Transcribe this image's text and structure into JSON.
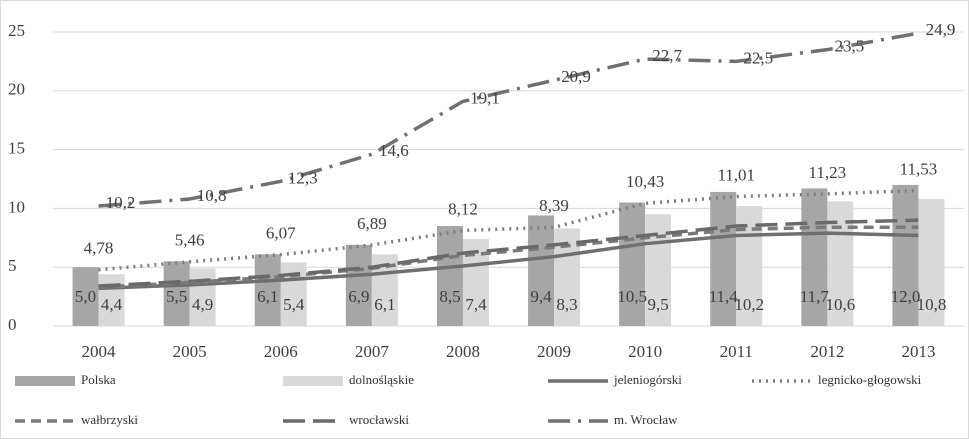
{
  "chart_data": {
    "type": "bar",
    "categories": [
      "2004",
      "2005",
      "2006",
      "2007",
      "2008",
      "2009",
      "2010",
      "2011",
      "2012",
      "2013"
    ],
    "ylim": [
      0,
      25
    ],
    "yticks": [
      0,
      5,
      10,
      15,
      20,
      25
    ],
    "grid": true,
    "series": [
      {
        "name": "Polska",
        "type": "bar",
        "color": "#a6a6a6",
        "values": [
          5.0,
          5.5,
          6.1,
          6.9,
          8.5,
          9.4,
          10.5,
          11.4,
          11.7,
          12.0
        ],
        "value_labels": [
          "5,0",
          "5,5",
          "6,1",
          "6,9",
          "8,5",
          "9,4",
          "10,5",
          "11,4",
          "11,7",
          "12,0"
        ]
      },
      {
        "name": "dolnośląskie",
        "type": "bar",
        "color": "#d9d9d9",
        "values": [
          4.4,
          4.9,
          5.4,
          6.1,
          7.4,
          8.3,
          9.5,
          10.2,
          10.6,
          10.8
        ],
        "value_labels": [
          "4,4",
          "4,9",
          "5,4",
          "6,1",
          "7,4",
          "8,3",
          "9,5",
          "10,2",
          "10,6",
          "10,8"
        ]
      },
      {
        "name": "jeleniogórski",
        "type": "line",
        "style": "solid",
        "color": "#6f6f6f",
        "values": [
          3.2,
          3.5,
          3.9,
          4.4,
          5.1,
          5.9,
          7.0,
          7.7,
          7.9,
          7.7
        ]
      },
      {
        "name": "legnicko-głogowski",
        "type": "line",
        "style": "dotted",
        "color": "#7f7f7f",
        "values": [
          4.78,
          5.46,
          6.07,
          6.89,
          8.12,
          8.39,
          10.43,
          11.01,
          11.23,
          11.53
        ],
        "value_labels": [
          "4,78",
          "5,46",
          "6,07",
          "6,89",
          "8,12",
          "8,39",
          "10,43",
          "11,01",
          "11,23",
          "11,53"
        ]
      },
      {
        "name": "wałbrzyski",
        "type": "line",
        "style": "dashed",
        "color": "#7a7a7a",
        "values": [
          3.3,
          3.7,
          4.2,
          4.9,
          6.0,
          6.7,
          7.5,
          8.2,
          8.4,
          8.4
        ]
      },
      {
        "name": "wrocławski",
        "type": "line",
        "style": "longdash",
        "color": "#6a6a6a",
        "values": [
          3.4,
          3.8,
          4.3,
          5.0,
          6.2,
          6.9,
          7.7,
          8.5,
          8.8,
          9.0
        ]
      },
      {
        "name": "m. Wrocław",
        "type": "line",
        "style": "dashdot",
        "color": "#707070",
        "values": [
          10.2,
          10.8,
          12.3,
          14.6,
          19.1,
          20.9,
          22.7,
          22.5,
          23.5,
          24.9
        ],
        "value_labels": [
          "10,2",
          "10,8",
          "12,3",
          "14,6",
          "19,1",
          "20,9",
          "22,7",
          "22,5",
          "23,5",
          "24,9"
        ]
      }
    ]
  }
}
